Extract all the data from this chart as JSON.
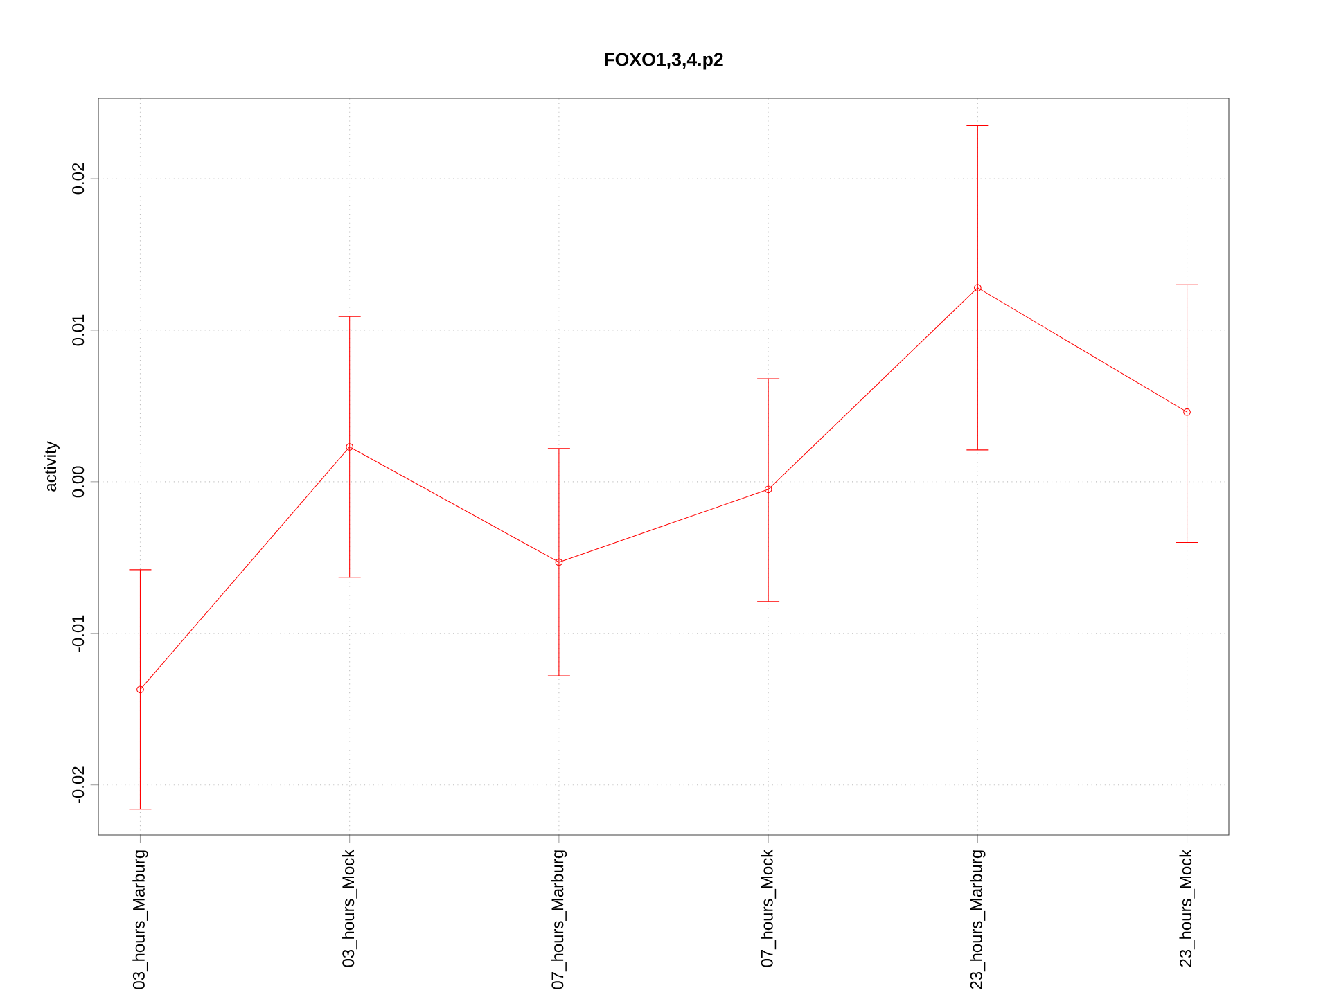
{
  "chart_data": {
    "type": "line",
    "title": "FOXO1,3,4.p2",
    "ylabel": "activity",
    "categories": [
      "03_hours_Marburg",
      "03_hours_Mock",
      "07_hours_Marburg",
      "07_hours_Mock",
      "23_hours_Marburg",
      "23_hours_Mock"
    ],
    "series": [
      {
        "color": "#ff0000",
        "values": [
          -0.0137,
          0.0023,
          -0.0053,
          -0.0005,
          0.0128,
          0.0046
        ],
        "errors": [
          [
            -0.0216,
            -0.0058
          ],
          [
            -0.0063,
            0.0109
          ],
          [
            -0.0128,
            0.0022
          ],
          [
            -0.0079,
            0.0068
          ],
          [
            0.0021,
            0.0235
          ],
          [
            -0.004,
            0.013
          ]
        ]
      }
    ],
    "ylim": [
      -0.0233,
      0.0253
    ],
    "yticks": [
      {
        "value": -0.02,
        "label": "-0.02"
      },
      {
        "value": -0.01,
        "label": "-0.01"
      },
      {
        "value": 0,
        "label": "0.00"
      },
      {
        "value": 0.01,
        "label": "0.01"
      },
      {
        "value": 0.02,
        "label": "0.02"
      }
    ],
    "grid": true,
    "marker": "circle",
    "line_style": "solid"
  }
}
